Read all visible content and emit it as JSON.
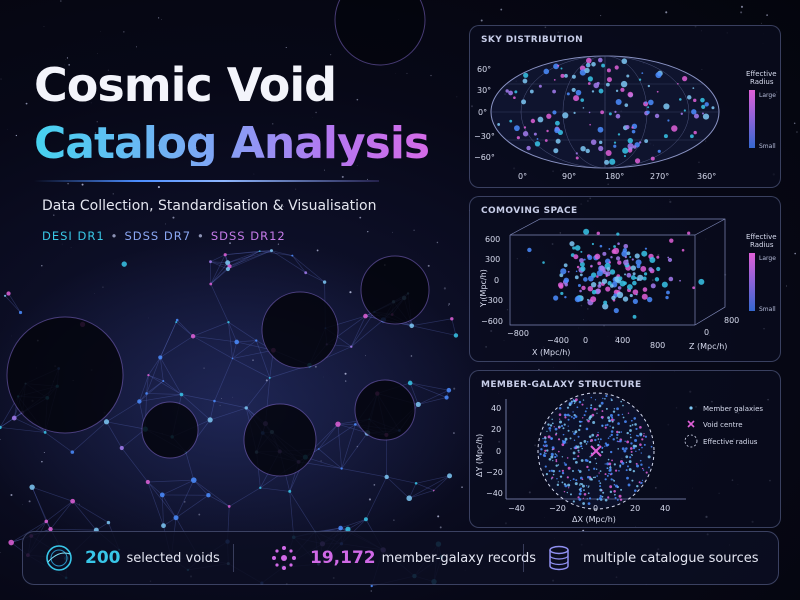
{
  "title": {
    "line1": "Cosmic Void",
    "line2": "Catalog Analysis",
    "subtitle": "Data Collection, Standardisation & Visualisation",
    "sources": [
      "DESI DR1",
      "SDSS DR7",
      "SDSS DR12"
    ],
    "separator": "•"
  },
  "panels": {
    "sky": {
      "title": "SKY DISTRIBUTION",
      "lat_ticks": [
        "60°",
        "30°",
        "0°",
        "−30°",
        "−60°"
      ],
      "lon_ticks": [
        "0°",
        "90°",
        "180°",
        "270°",
        "360°"
      ],
      "legend_title_1": "Effective",
      "legend_title_2": "Radius",
      "legend_large": "Large",
      "legend_small": "Small"
    },
    "comoving": {
      "title": "COMOVING SPACE",
      "y_ticks": [
        "600",
        "300",
        "0",
        "−300",
        "−600"
      ],
      "x_ticks": [
        "−800",
        "−400",
        "0",
        "400",
        "800"
      ],
      "z_ticks": [
        "800",
        "0"
      ],
      "y_label": "Y (Mpc/h)",
      "x_label": "X (Mpc/h)",
      "z_label": "Z (Mpc/h)",
      "legend_title_1": "Effective",
      "legend_title_2": "Radius",
      "legend_large": "Large",
      "legend_small": "Small"
    },
    "member": {
      "title": "MEMBER-GALAXY STRUCTURE",
      "y_ticks": [
        "40",
        "20",
        "0",
        "−20",
        "−40"
      ],
      "x_ticks": [
        "−40",
        "−20",
        "0",
        "20",
        "40"
      ],
      "y_label": "ΔY (Mpc/h)",
      "x_label": "ΔX (Mpc/h)",
      "legend": [
        "Member galaxies",
        "Void centre",
        "Effective radius"
      ]
    }
  },
  "stats": [
    {
      "number": "200",
      "text": "selected voids",
      "icon": "ring-icon",
      "color": "#38c6e8"
    },
    {
      "number": "19,172",
      "text": "member-galaxy records",
      "icon": "dots-cluster-icon",
      "color": "#d069e6"
    },
    {
      "number": "",
      "text": "multiple catalogue sources",
      "icon": "database-icon",
      "color": "#8f8ff0"
    }
  ],
  "colors": {
    "cyan": "#38c6e8",
    "blue": "#4b8dff",
    "violet": "#a57cf0",
    "magenta": "#e060d8"
  }
}
